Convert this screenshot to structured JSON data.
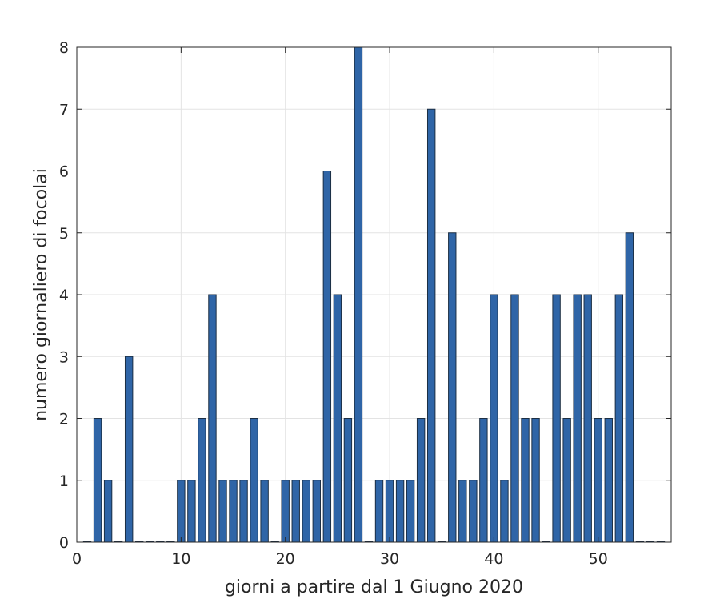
{
  "chart_data": {
    "type": "bar",
    "xlabel": "giorni a partire dal 1 Giugno 2020",
    "ylabel": "numero giornaliero di focolai",
    "xlim": [
      0,
      57
    ],
    "ylim": [
      0,
      8
    ],
    "xticks": [
      0,
      10,
      20,
      30,
      40,
      50
    ],
    "yticks": [
      0,
      1,
      2,
      3,
      4,
      5,
      6,
      7,
      8
    ],
    "grid": true,
    "bar_color": "#2f65a7",
    "x": [
      1,
      2,
      3,
      4,
      5,
      6,
      7,
      8,
      9,
      10,
      11,
      12,
      13,
      14,
      15,
      16,
      17,
      18,
      19,
      20,
      21,
      22,
      23,
      24,
      25,
      26,
      27,
      28,
      29,
      30,
      31,
      32,
      33,
      34,
      35,
      36,
      37,
      38,
      39,
      40,
      41,
      42,
      43,
      44,
      45,
      46,
      47,
      48,
      49,
      50,
      51,
      52,
      53,
      54,
      55,
      56
    ],
    "values": [
      0,
      2,
      1,
      0,
      3,
      0,
      0,
      0,
      0,
      1,
      1,
      2,
      4,
      1,
      1,
      1,
      2,
      1,
      0,
      1,
      1,
      1,
      1,
      6,
      4,
      2,
      8,
      0,
      1,
      1,
      1,
      1,
      2,
      7,
      0,
      5,
      1,
      1,
      2,
      4,
      1,
      4,
      2,
      2,
      0,
      4,
      2,
      4,
      4,
      2,
      2,
      4,
      5,
      0,
      0,
      0
    ]
  }
}
